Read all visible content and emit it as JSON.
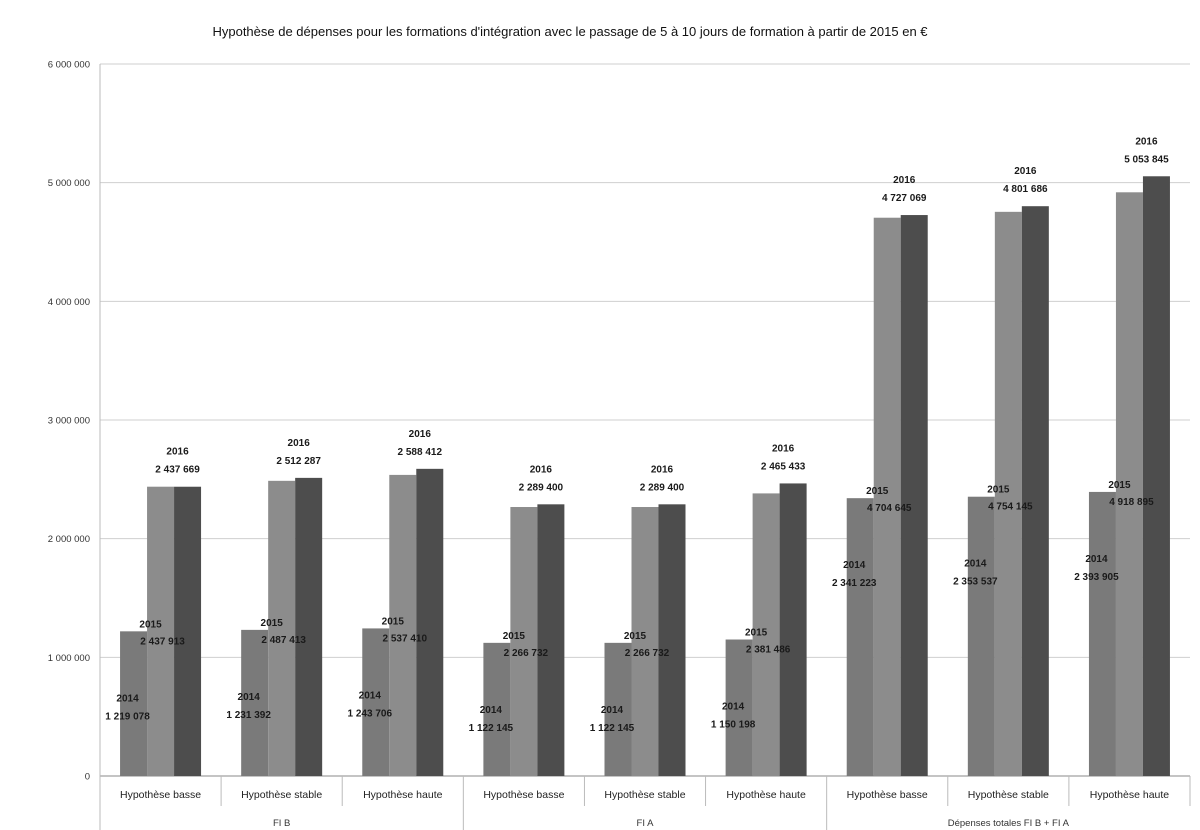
{
  "chart_data": {
    "type": "bar",
    "title": "Hypothèse de dépenses pour les formations d'intégration avec le passage de 5 à 10 jours de formation à partir de 2015 en €",
    "xlabel": "",
    "ylabel": "",
    "ylim": [
      0,
      6000000
    ],
    "yticks": [
      {
        "value": 0,
        "label": "0"
      },
      {
        "value": 1000000,
        "label": "1 000 000"
      },
      {
        "value": 2000000,
        "label": "2 000 000"
      },
      {
        "value": 3000000,
        "label": "3 000 000"
      },
      {
        "value": 4000000,
        "label": "4 000 000"
      },
      {
        "value": 5000000,
        "label": "5 000 000"
      },
      {
        "value": 6000000,
        "label": "6 000 000"
      }
    ],
    "grid": true,
    "legend": "none",
    "groups": [
      {
        "name": "FI B",
        "categories": [
          "Hypothèse basse",
          "Hypothèse stable",
          "Hypothèse haute"
        ]
      },
      {
        "name": "FI A",
        "categories": [
          "Hypothèse basse",
          "Hypothèse stable",
          "Hypothèse haute"
        ]
      },
      {
        "name": "Dépenses totales FI B + FI A",
        "categories": [
          "Hypothèse basse",
          "Hypothèse stable",
          "Hypothèse haute"
        ]
      }
    ],
    "categories": [
      "Hypothèse basse",
      "Hypothèse stable",
      "Hypothèse haute",
      "Hypothèse basse",
      "Hypothèse stable",
      "Hypothèse haute",
      "Hypothèse basse",
      "Hypothèse stable",
      "Hypothèse haute"
    ],
    "series": [
      {
        "name": "2014",
        "color": "#7a7a7a",
        "values": [
          1219078,
          1231392,
          1243706,
          1122145,
          1122145,
          1150198,
          2341223,
          2353537,
          2393905
        ],
        "labels": [
          "1 219 078",
          "1 231 392",
          "1 243 706",
          "1 122 145",
          "1 122 145",
          "1 150 198",
          "2 341 223",
          "2 353 537",
          "2 393 905"
        ]
      },
      {
        "name": "2015",
        "color": "#8c8c8c",
        "values": [
          2437913,
          2487413,
          2537410,
          2266732,
          2266732,
          2381486,
          4704645,
          4754145,
          4918895
        ],
        "labels": [
          "2 437 913",
          "2 487 413",
          "2 537 410",
          "2 266 732",
          "2 266 732",
          "2 381 486",
          "4 704 645",
          "4 754 145",
          "4 918 895"
        ]
      },
      {
        "name": "2016",
        "color": "#4d4d4d",
        "values": [
          2437669,
          2512287,
          2588412,
          2289400,
          2289400,
          2465433,
          4727069,
          4801686,
          5053845
        ],
        "labels": [
          "2 437 669",
          "2 512 287",
          "2 588 412",
          "2 289 400",
          "2 289 400",
          "2 465 433",
          "4 727 069",
          "4 801 686",
          "5 053 845"
        ]
      }
    ]
  }
}
